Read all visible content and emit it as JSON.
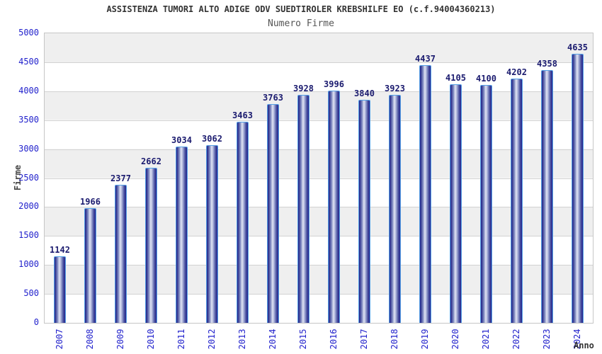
{
  "header": {
    "title": "ASSISTENZA TUMORI ALTO ADIGE ODV SUEDTIROLER KREBSHILFE EO (c.f.94004360213)",
    "subtitle": "Numero Firme"
  },
  "axes": {
    "y_title": "Firme",
    "x_title": "Anno",
    "y_ticks": [
      "0",
      "500",
      "1000",
      "1500",
      "2000",
      "2500",
      "3000",
      "3500",
      "4000",
      "4500",
      "5000"
    ]
  },
  "colors": {
    "tick_label": "#2222cc",
    "value_label": "#1b1b6f",
    "bar_dark": "#23238b",
    "bar_light": "#e2e6f5",
    "bar_border": "#55a0e6",
    "band_gray": "#efefef",
    "band_white": "#ffffff",
    "plot_border": "#c6c6c6",
    "title_text": "#333333",
    "subtitle_text": "#555555"
  },
  "chart_data": {
    "type": "bar",
    "title": "ASSISTENZA TUMORI ALTO ADIGE ODV SUEDTIROLER KREBSHILFE EO (c.f.94004360213)",
    "subtitle": "Numero Firme",
    "xlabel": "Anno",
    "ylabel": "Firme",
    "categories": [
      "2007",
      "2008",
      "2009",
      "2010",
      "2011",
      "2012",
      "2013",
      "2014",
      "2015",
      "2016",
      "2017",
      "2018",
      "2019",
      "2020",
      "2021",
      "2022",
      "2023",
      "2024"
    ],
    "values": [
      1142,
      1966,
      2377,
      2662,
      3034,
      3062,
      3463,
      3763,
      3928,
      3996,
      3840,
      3923,
      4437,
      4105,
      4100,
      4202,
      4358,
      4635
    ],
    "ylim": [
      0,
      5000
    ],
    "ytick_step": 500,
    "grid": true,
    "alternating_bands": true,
    "legend": "none",
    "data_labels": "above-bars"
  }
}
